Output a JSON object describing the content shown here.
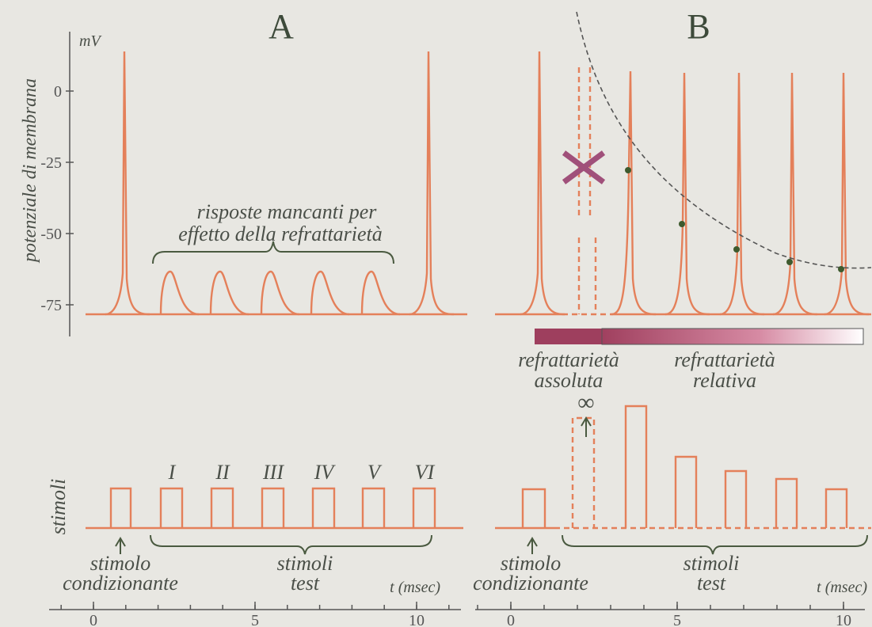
{
  "y_axis": {
    "unit": "mV",
    "label": "potenziale di membrana",
    "ticks": [
      0,
      -25,
      -50,
      -75
    ]
  },
  "stimuli_label": "stimoli",
  "panel_a": {
    "label": "A",
    "brace_text": [
      "risposte mancanti per",
      "effetto della refrattarietà"
    ],
    "stimulus_numerals": [
      "I",
      "II",
      "III",
      "IV",
      "V",
      "VI"
    ],
    "conditioning": [
      "stimolo",
      "condizionante"
    ],
    "test": [
      "stimoli",
      "test"
    ],
    "time_label": "t (msec)",
    "time_ticks": [
      0,
      5,
      10
    ]
  },
  "panel_b": {
    "label": "B",
    "absolute": [
      "refrattarietà",
      "assoluta"
    ],
    "relative": [
      "refrattarietà",
      "relativa"
    ],
    "infinity": "∞",
    "conditioning": [
      "stimolo",
      "condizionante"
    ],
    "test": [
      "stimoli",
      "test"
    ],
    "time_label": "t (msec)",
    "time_ticks": [
      0,
      5,
      10
    ]
  }
}
